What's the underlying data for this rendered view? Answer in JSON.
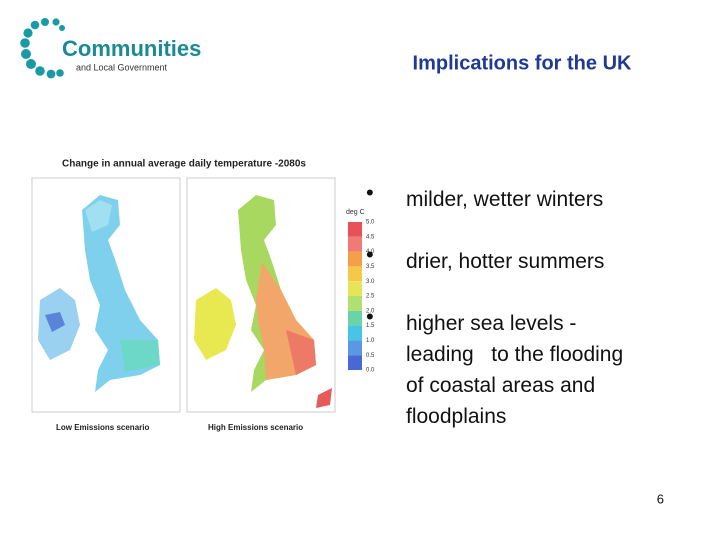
{
  "header": {
    "logo_title": "Communities",
    "logo_subtitle": "and Local Government",
    "title": "Implications for the UK"
  },
  "figure": {
    "title": "Change in annual average daily temperature -2080s",
    "legend_unit": "deg C",
    "legend_ticks": [
      "5.0",
      "4.5",
      "4.0",
      "3.5",
      "3.0",
      "2.5",
      "2.0",
      "1.5",
      "1.0",
      "0.5",
      "0.0"
    ],
    "captions": [
      "Low Emissions scenario",
      "High Emissions scenario"
    ]
  },
  "bullets": [
    [
      "milder, wetter winters"
    ],
    [
      "drier, hotter summers"
    ],
    [
      "higher sea levels -",
      "leading   to the flooding",
      "of coastal areas and",
      "floodplains"
    ]
  ],
  "page_number": "6"
}
